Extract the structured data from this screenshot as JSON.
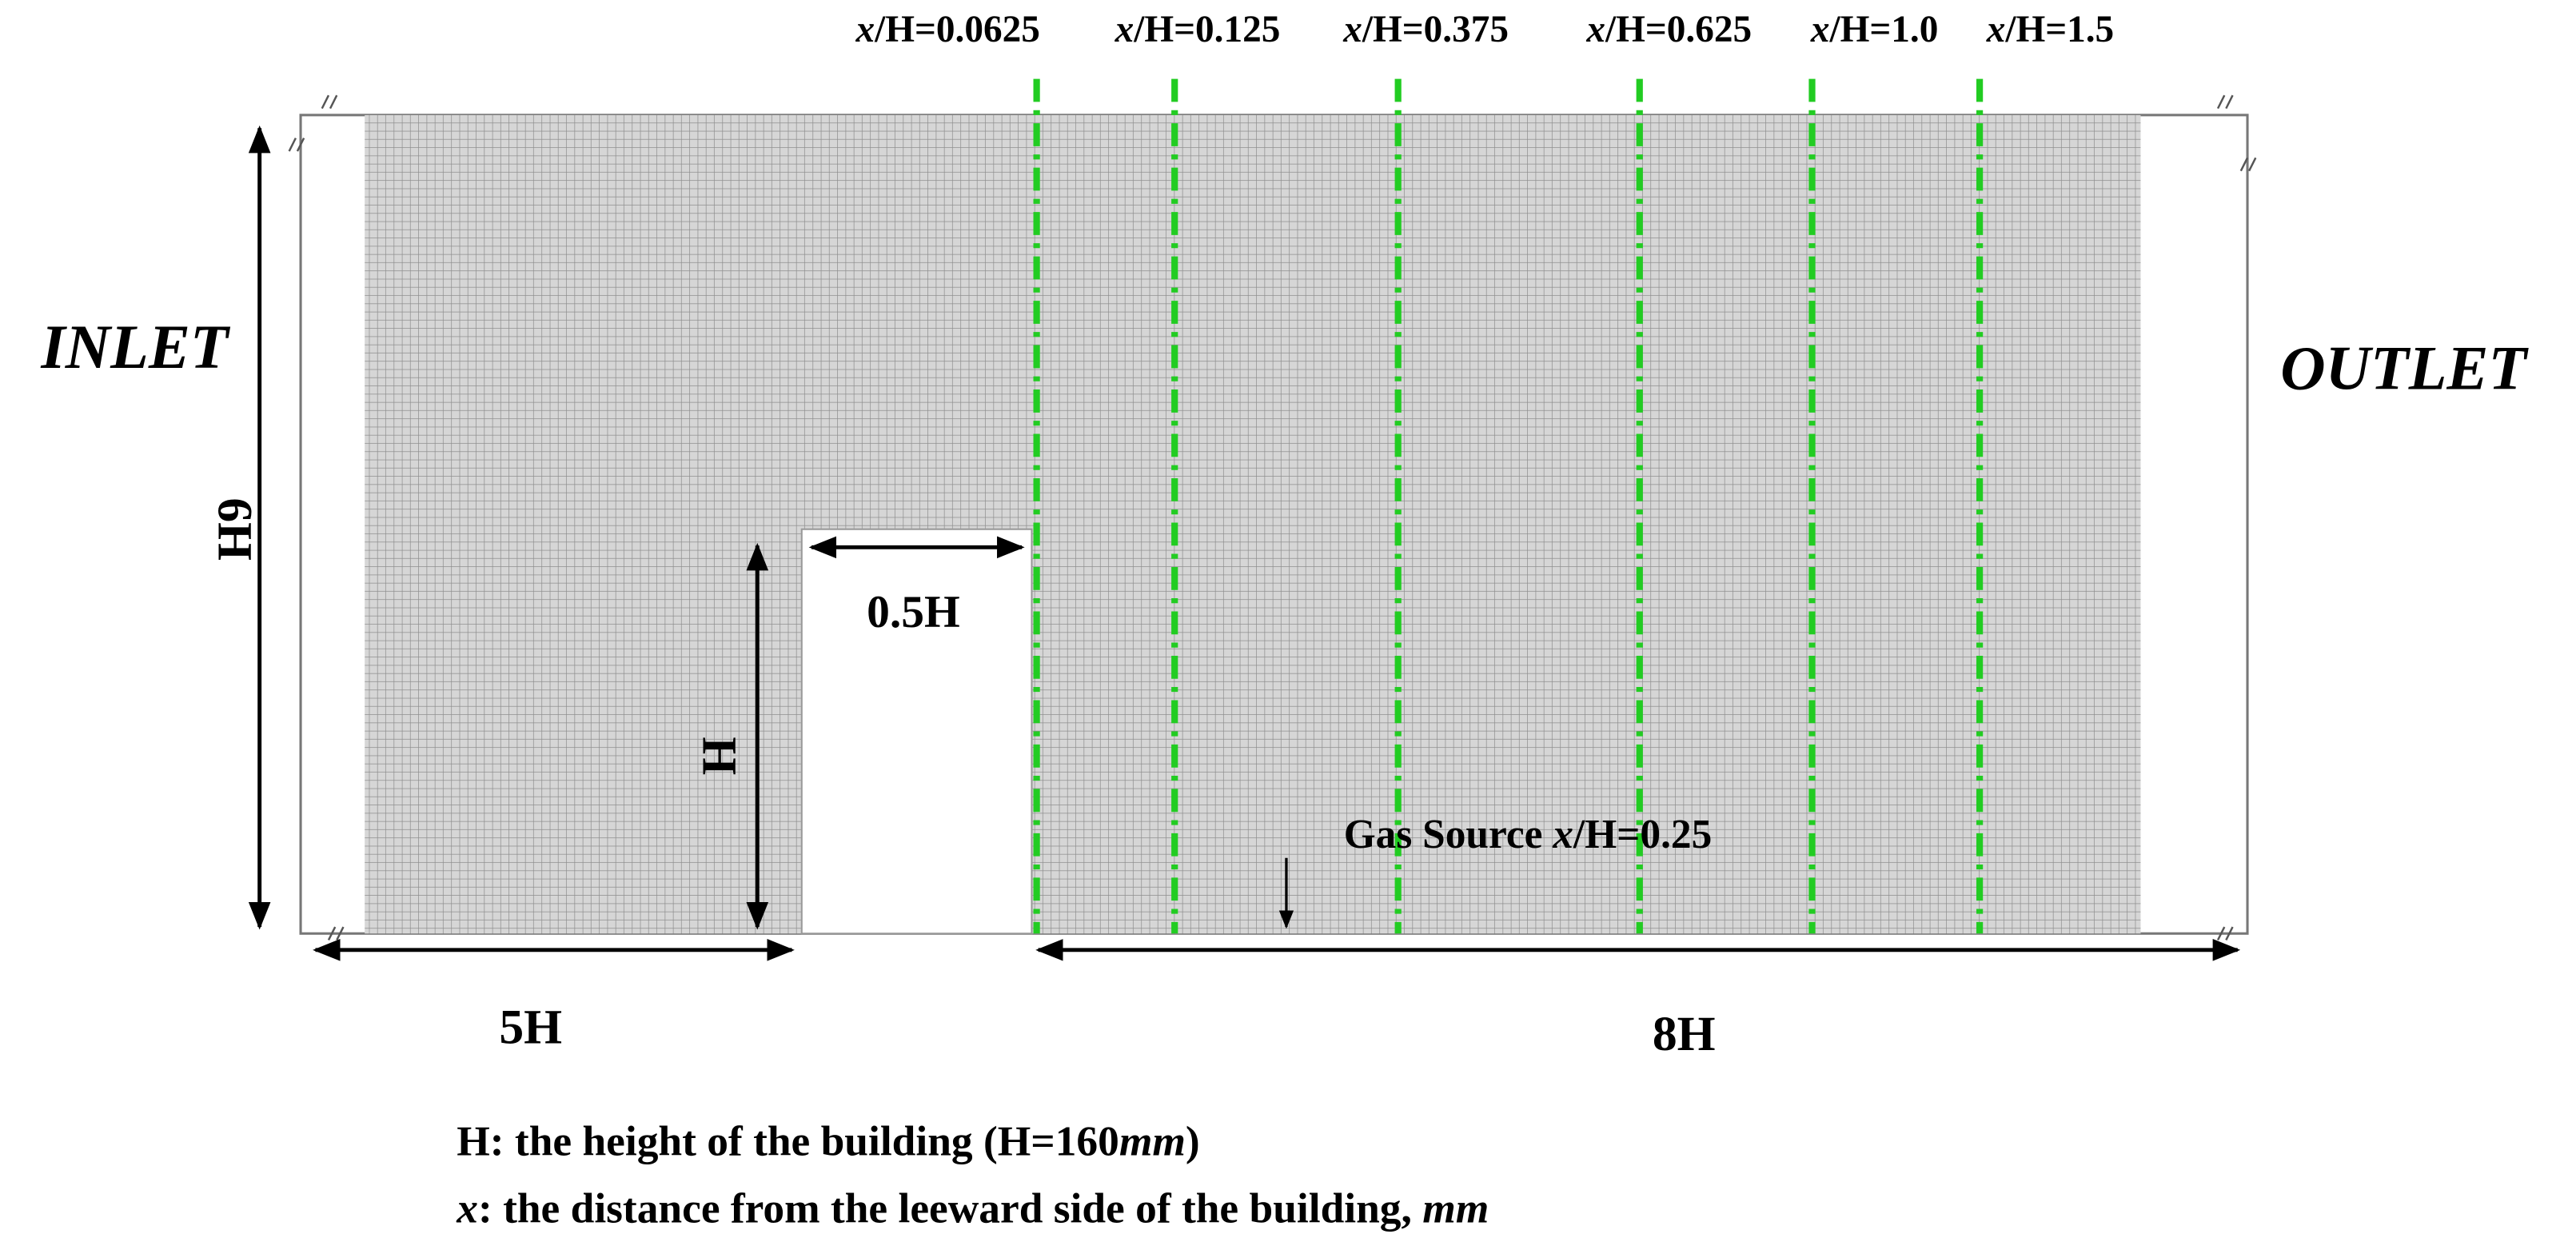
{
  "profiles": [
    [
      {
        "text": "x",
        "italic": true
      },
      {
        "text": "/H=0.0625"
      }
    ],
    [
      {
        "text": "x",
        "italic": true
      },
      {
        "text": "/H=0.125"
      }
    ],
    [
      {
        "text": "x",
        "italic": true
      },
      {
        "text": "/H=0.375"
      }
    ],
    [
      {
        "text": "x",
        "italic": true
      },
      {
        "text": "/H=0.625"
      }
    ],
    [
      {
        "text": "x",
        "italic": true
      },
      {
        "text": "/H=1.0"
      }
    ],
    [
      {
        "text": "x",
        "italic": true
      },
      {
        "text": "/H=1.5"
      }
    ]
  ],
  "boundaries": {
    "inlet": "INLET",
    "outlet": "OUTLET"
  },
  "dimensions": {
    "domain_height": "6H",
    "building_height": "H",
    "building_width": "0.5H",
    "upstream": "5H",
    "downstream": "8H"
  },
  "gas_source": [
    {
      "text": "Gas Source "
    },
    {
      "text": "x",
      "italic": true
    },
    {
      "text": "/H=0.25"
    }
  ],
  "notes": [
    [
      {
        "text": "H: the height of the building (H=160"
      },
      {
        "text": "mm",
        "italic": true
      },
      {
        "text": ")"
      }
    ],
    [
      {
        "text": "x",
        "italic": true
      },
      {
        "text": ": the distance from the leeward side of the building, "
      },
      {
        "text": "mm",
        "italic": true
      }
    ]
  ]
}
